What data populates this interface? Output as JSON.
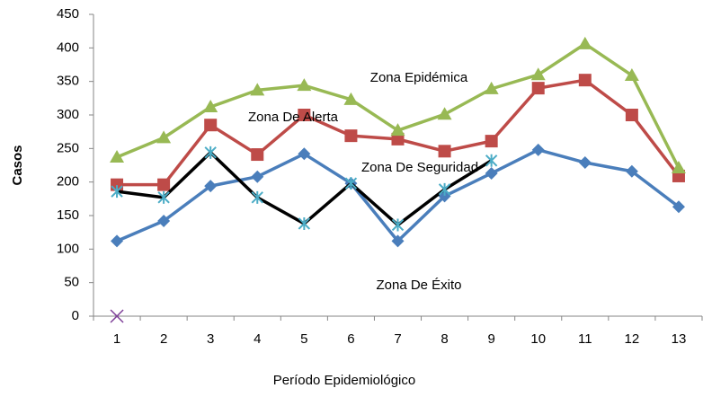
{
  "chart_data": {
    "type": "line",
    "x_label": "Período Epidemiológico",
    "y_label": "Casos",
    "categories": [
      "1",
      "2",
      "3",
      "4",
      "5",
      "6",
      "7",
      "8",
      "9",
      "10",
      "11",
      "12",
      "13"
    ],
    "series": [
      {
        "color": "#4a7ebb",
        "marker": "diamond",
        "values": [
          112,
          142,
          194,
          208,
          242,
          198,
          112,
          179,
          213,
          248,
          229,
          216,
          163
        ]
      },
      {
        "color": "#be4b48",
        "marker": "square",
        "values": [
          196,
          196,
          285,
          241,
          300,
          269,
          264,
          246,
          261,
          340,
          352,
          300,
          209
        ]
      },
      {
        "color": "#98b954",
        "marker": "triangle",
        "values": [
          237,
          266,
          312,
          337,
          344,
          323,
          277,
          301,
          339,
          360,
          406,
          359,
          221
        ]
      },
      {
        "color": "#000000",
        "marker": "star",
        "values": [
          186,
          177,
          244,
          177,
          138,
          198,
          136,
          189,
          232,
          null,
          null,
          null,
          null
        ]
      },
      {
        "color": "#7e3f98",
        "marker": "x",
        "values": [
          0,
          null,
          null,
          null,
          null,
          null,
          null,
          null,
          null,
          null,
          null,
          null,
          null
        ]
      }
    ],
    "annotations": [
      "Zona Epidémica",
      "Zona De Alerta",
      "Zona De Seguridad",
      "Zona De Éxito"
    ],
    "ylim": [
      0,
      450
    ],
    "yticks": [
      0,
      50,
      100,
      150,
      200,
      250,
      300,
      350,
      400,
      450
    ]
  }
}
